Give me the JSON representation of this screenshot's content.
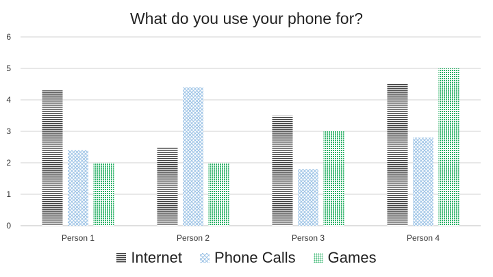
{
  "chart_data": {
    "type": "bar",
    "title": "What do you use your phone for?",
    "categories": [
      "Person 1",
      "Person 2",
      "Person 3",
      "Person 4"
    ],
    "series": [
      {
        "name": "Internet",
        "values": [
          4.3,
          2.5,
          3.5,
          4.5
        ],
        "pattern": "horizontal-lines",
        "color": "#404040"
      },
      {
        "name": "Phone Calls",
        "values": [
          2.4,
          4.4,
          1.8,
          2.8
        ],
        "pattern": "crosshatch",
        "color": "#9dc3e6"
      },
      {
        "name": "Games",
        "values": [
          2.0,
          2.0,
          3.0,
          5.0
        ],
        "pattern": "dotted",
        "color": "#2fb36a"
      }
    ],
    "xlabel": "",
    "ylabel": "",
    "ylim": [
      0,
      6
    ],
    "yticks": [
      0,
      1,
      2,
      3,
      4,
      5,
      6
    ],
    "grid": true,
    "legend_position": "bottom"
  }
}
